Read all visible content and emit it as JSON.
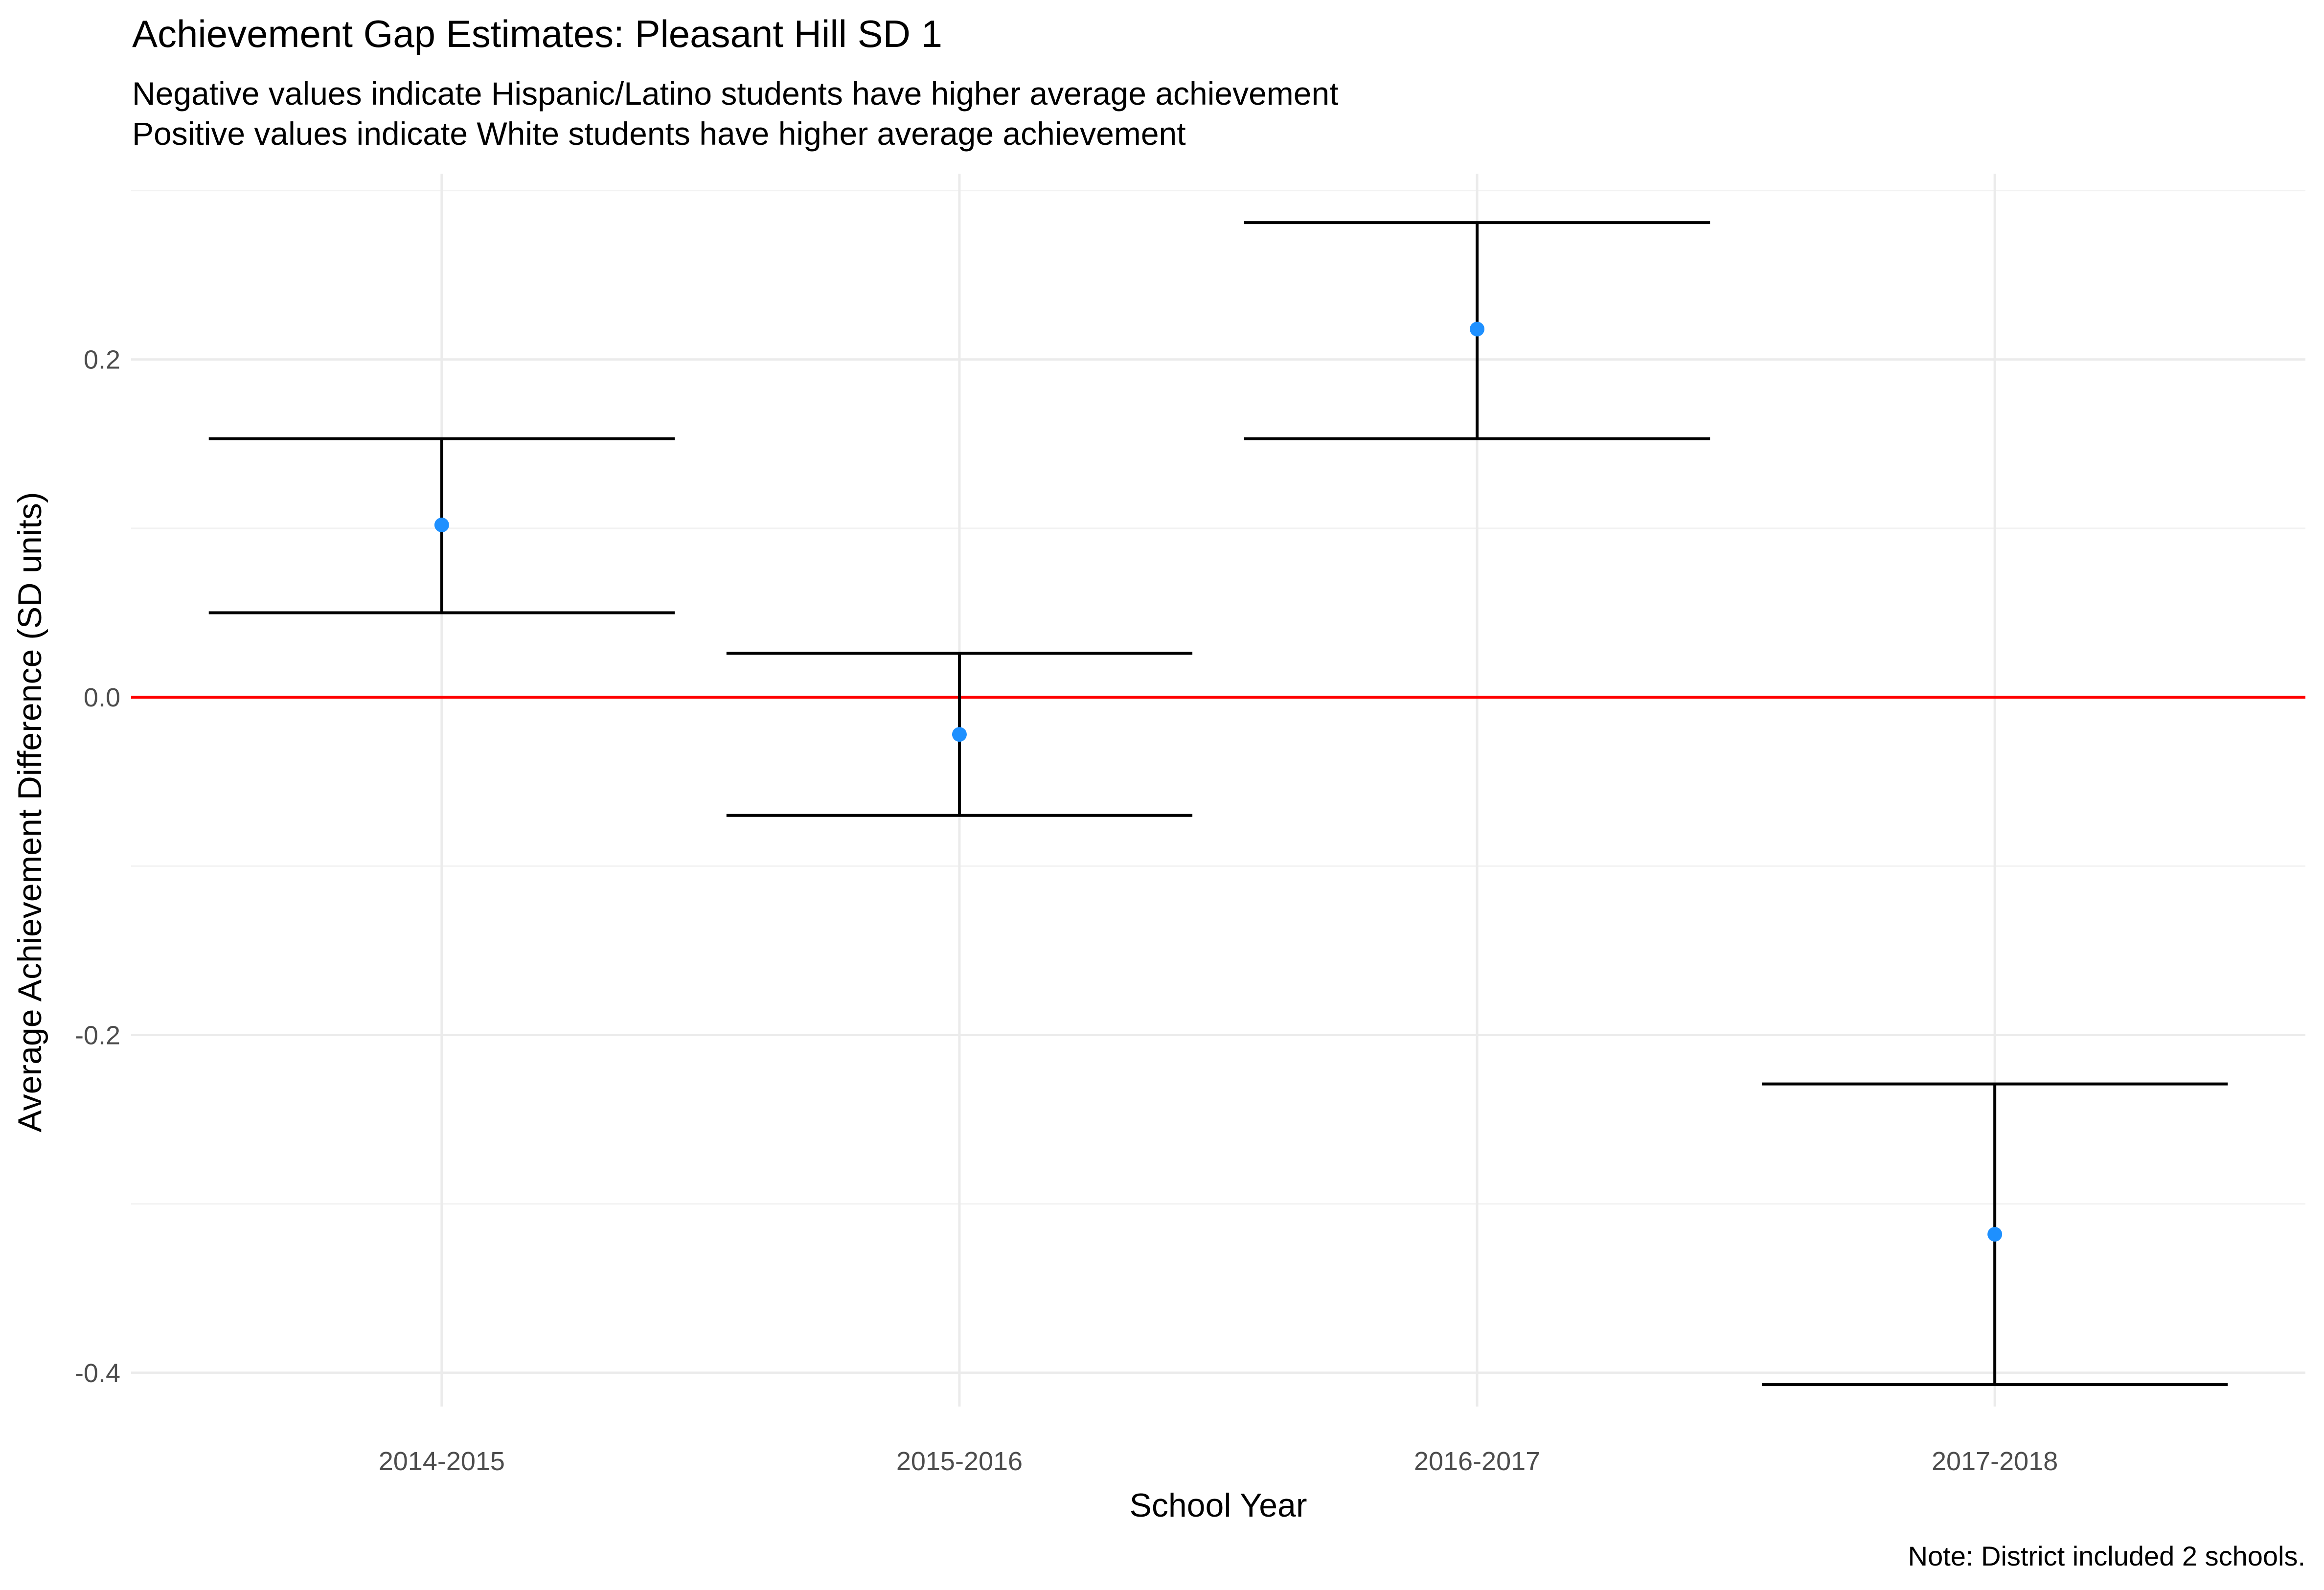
{
  "chart_data": {
    "type": "scatter",
    "title": "Achievement Gap Estimates: Pleasant Hill SD 1",
    "subtitle_lines": [
      "Negative values indicate Hispanic/Latino students have higher average achievement",
      "Positive values indicate White students have higher average achievement"
    ],
    "xlabel": "School Year",
    "ylabel": "Average Achievement Difference (SD units)",
    "caption": "Note: District included 2 schools.",
    "categories": [
      "2014-2015",
      "2015-2016",
      "2016-2017",
      "2017-2018"
    ],
    "estimates": [
      0.102,
      -0.022,
      0.218,
      -0.318
    ],
    "ci_lower": [
      0.05,
      -0.07,
      0.153,
      -0.407
    ],
    "ci_upper": [
      0.153,
      0.026,
      0.281,
      -0.229
    ],
    "ylim": [
      -0.42,
      0.31
    ],
    "y_ticks": [
      0.2,
      0.0,
      -0.2,
      -0.4
    ],
    "y_tick_labels": [
      "0.2",
      "0.0",
      "-0.2",
      "-0.4"
    ],
    "reference_line": 0,
    "grid": true,
    "colors": {
      "point": "#1e90ff",
      "error_bar": "#000000",
      "reference_line": "#ff0000",
      "grid": "#ebebeb"
    }
  }
}
